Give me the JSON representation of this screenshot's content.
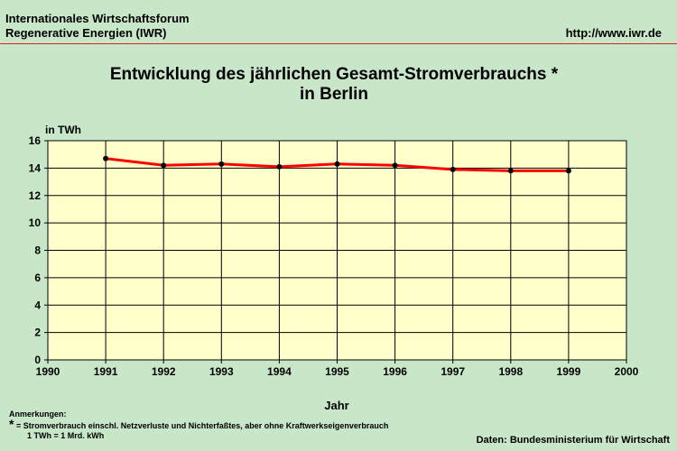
{
  "header": {
    "org_line1": "Internationales Wirtschaftsforum",
    "org_line2": "Regenerative Energien (IWR)",
    "url": "http://www.iwr.de"
  },
  "footer": {
    "notes_title": "Anmerkungen:",
    "note_star": "*",
    "note_text": "= Stromverbrauch einschl. Netzverluste und Nichterfaßtes, aber ohne Kraftwerkseigenverbrauch",
    "note_unit": "1 TWh = 1 Mrd. kWh",
    "source": "Daten: Bundesministerium für Wirtschaft"
  },
  "colors": {
    "background": "#c8e6c8",
    "plot_area": "#ffffcc",
    "line": "#ff0000",
    "marker": "#000000",
    "header_rule": "#dd2222"
  },
  "chart_data": {
    "type": "line",
    "title_line1": "Entwicklung des jährlichen Gesamt-Stromverbrauchs *",
    "title_line2": "in Berlin",
    "unit_label": "in TWh",
    "xlabel": "Jahr",
    "xlim": [
      1990,
      2000
    ],
    "ylim": [
      0,
      16
    ],
    "x_ticks": [
      1990,
      1991,
      1992,
      1993,
      1994,
      1995,
      1996,
      1997,
      1998,
      1999,
      2000
    ],
    "y_ticks": [
      0,
      2,
      4,
      6,
      8,
      10,
      12,
      14,
      16
    ],
    "grid": true,
    "series": [
      {
        "x": [
          1991,
          1992,
          1993,
          1994,
          1995,
          1996,
          1997,
          1998,
          1999
        ],
        "values": [
          14.7,
          14.2,
          14.3,
          14.1,
          14.3,
          14.2,
          13.9,
          13.8,
          13.8
        ]
      }
    ]
  }
}
